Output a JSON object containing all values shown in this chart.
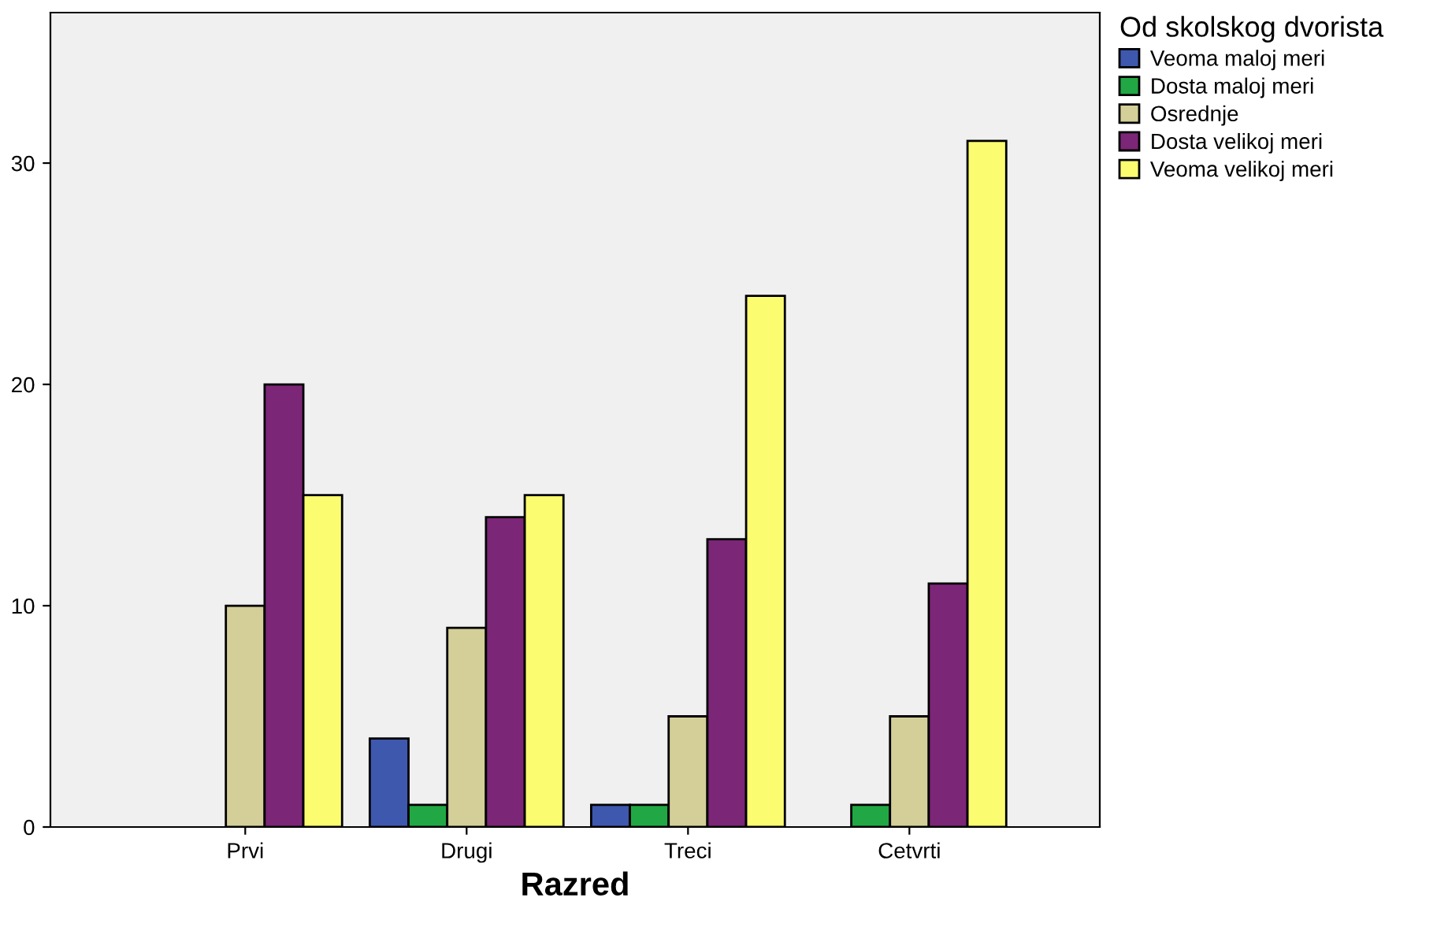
{
  "chart_data": {
    "type": "bar",
    "xlabel": "Razred",
    "legend_title": "Od skolskog dvorista",
    "categories": [
      "Prvi",
      "Drugi",
      "Treci",
      "Cetvrti"
    ],
    "series": [
      {
        "name": "Veoma maloj meri",
        "color": "#3e58ae",
        "values": [
          null,
          4,
          1,
          null
        ]
      },
      {
        "name": "Dosta maloj meri",
        "color": "#21a844",
        "values": [
          null,
          1,
          1,
          1
        ]
      },
      {
        "name": "Osrednje",
        "color": "#d4cf98",
        "values": [
          10,
          9,
          5,
          5
        ]
      },
      {
        "name": "Dosta velikoj meri",
        "color": "#7c2677",
        "values": [
          20,
          14,
          13,
          11
        ]
      },
      {
        "name": "Veoma velikoj meri",
        "color": "#fcfc70",
        "values": [
          15,
          15,
          24,
          31
        ]
      }
    ],
    "ylim": [
      0,
      36.8
    ],
    "yticks": [
      0,
      10,
      20,
      30
    ],
    "grid": false,
    "legend": "top right"
  }
}
